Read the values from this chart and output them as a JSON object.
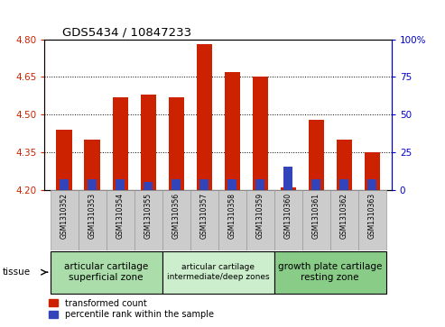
{
  "title": "GDS5434 / 10847233",
  "samples": [
    "GSM1310352",
    "GSM1310353",
    "GSM1310354",
    "GSM1310355",
    "GSM1310356",
    "GSM1310357",
    "GSM1310358",
    "GSM1310359",
    "GSM1310360",
    "GSM1310361",
    "GSM1310362",
    "GSM1310363"
  ],
  "red_values": [
    4.44,
    4.4,
    4.57,
    4.58,
    4.57,
    4.78,
    4.67,
    4.65,
    4.21,
    4.48,
    4.4,
    4.35
  ],
  "blue_percentile": [
    7,
    7,
    7,
    5,
    7,
    7,
    7,
    7,
    15,
    7,
    7,
    7
  ],
  "ymin": 4.2,
  "ymax": 4.8,
  "y2min": 0,
  "y2max": 100,
  "yticks": [
    4.2,
    4.35,
    4.5,
    4.65,
    4.8
  ],
  "y2ticks": [
    0,
    25,
    50,
    75,
    100
  ],
  "red_color": "#cc2200",
  "blue_color": "#3344bb",
  "bar_width": 0.55,
  "blue_bar_width": 0.3,
  "groups": [
    {
      "label": "articular cartilage\nsuperficial zone",
      "start": 0,
      "end": 4,
      "color": "#aaddaa"
    },
    {
      "label": "articular cartilage\nintermediate/deep zones",
      "start": 4,
      "end": 8,
      "color": "#cceecc"
    },
    {
      "label": "growth plate cartilage\nresting zone",
      "start": 8,
      "end": 12,
      "color": "#88cc88"
    }
  ],
  "legend_red": "transformed count",
  "legend_blue": "percentile rank within the sample",
  "tissue_label": "tissue",
  "left_tick_color": "#cc2200",
  "right_tick_color": "#0000cc",
  "bg_color": "#ffffff",
  "xticklabel_bg": "#cccccc"
}
